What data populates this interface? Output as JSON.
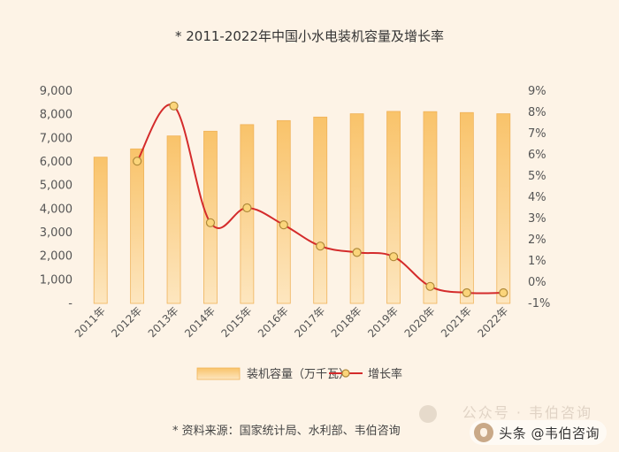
{
  "chart_data": {
    "type": "bar+line",
    "title": "2011-2022年中国小水电装机容量及增长率",
    "title_marker": "*",
    "categories": [
      "2011年",
      "2012年",
      "2013年",
      "2014年",
      "2015年",
      "2016年",
      "2017年",
      "2018年",
      "2019年",
      "2020年",
      "2021年",
      "2022年"
    ],
    "series": [
      {
        "name": "装机容量（万千瓦）",
        "kind": "bar",
        "axis": "left",
        "values": [
          6200,
          6550,
          7100,
          7300,
          7580,
          7750,
          7900,
          8040,
          8140,
          8130,
          8090,
          8040
        ]
      },
      {
        "name": "增长率",
        "kind": "line",
        "axis": "right",
        "values": [
          null,
          5.7,
          8.3,
          2.8,
          3.5,
          2.7,
          1.7,
          1.4,
          1.2,
          -0.2,
          -0.5,
          -0.5
        ]
      }
    ],
    "left_axis": {
      "ylim": [
        0,
        9000
      ],
      "ticks": [
        "-",
        "1,000",
        "2,000",
        "3,000",
        "4,000",
        "5,000",
        "6,000",
        "7,000",
        "8,000",
        "9,000"
      ]
    },
    "right_axis": {
      "ylim": [
        -1,
        9
      ],
      "ticks": [
        "-1%",
        "0%",
        "1%",
        "2%",
        "3%",
        "4%",
        "5%",
        "6%",
        "7%",
        "8%",
        "9%"
      ]
    },
    "grid": false,
    "legend": "bottom-center",
    "source": "* 资料来源：国家统计局、水利部、韦伯咨询",
    "colors": {
      "bar_top": "#f9c36a",
      "bar_bottom": "#fde6bf",
      "bar_edge": "#f0b35a",
      "line": "#d42b2b",
      "marker": "#fbd57b",
      "marker_edge": "#b08a3a",
      "text": "#555555"
    }
  },
  "watermark": {
    "text": "头条 @韦伯咨询",
    "ghost_text": "公众号 · 韦伯咨询",
    "icon": "logo-icon"
  }
}
